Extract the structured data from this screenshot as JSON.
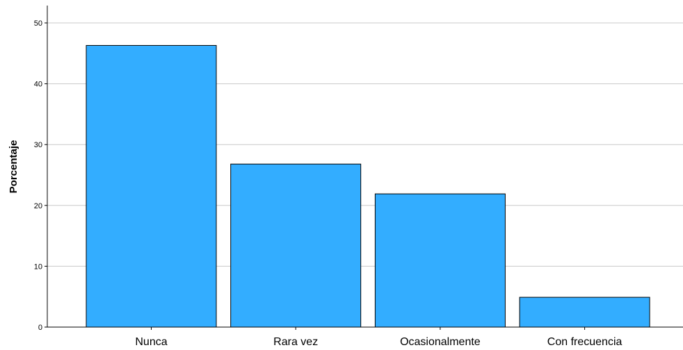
{
  "chart_data": {
    "type": "bar",
    "title": "",
    "xlabel": "",
    "ylabel": "Porcentaje",
    "categories": [
      "Nunca",
      "Rara vez",
      "Ocasionalmente",
      "Con frecuencia"
    ],
    "values": [
      46.3,
      26.8,
      21.9,
      4.9
    ],
    "ylim": [
      0,
      50
    ],
    "yticks": [
      0,
      10,
      20,
      30,
      40,
      50
    ],
    "grid": true,
    "bar_color": "#33adff",
    "legend": "none"
  }
}
